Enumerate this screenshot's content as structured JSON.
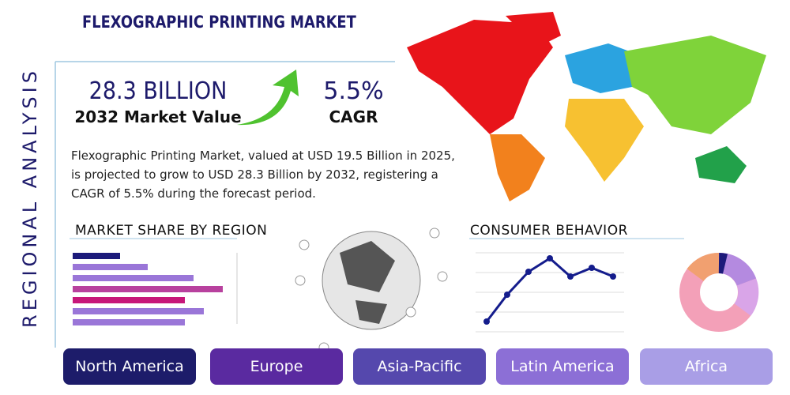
{
  "header": {
    "title": "FLEXOGRAPHIC PRINTING MARKET",
    "side_label": "REGIONAL ANALYSIS"
  },
  "stats": [
    {
      "value": "28.3 BILLION",
      "label": "2032 Market Value"
    },
    {
      "value": "5.5%",
      "label": "CAGR"
    }
  ],
  "description": "Flexographic Printing Market, valued at USD 19.5 Billion in 2025, is projected to grow to USD 28.3 Billion by 2032, registering a CAGR of 5.5% during the forecast period.",
  "sections": {
    "market_share": "MARKET SHARE BY REGION",
    "consumer_behavior": "CONSUMER BEHAVIOR"
  },
  "regions": [
    "North America",
    "Europe",
    "Asia-Pacific",
    "Latin America",
    "Africa"
  ]
}
